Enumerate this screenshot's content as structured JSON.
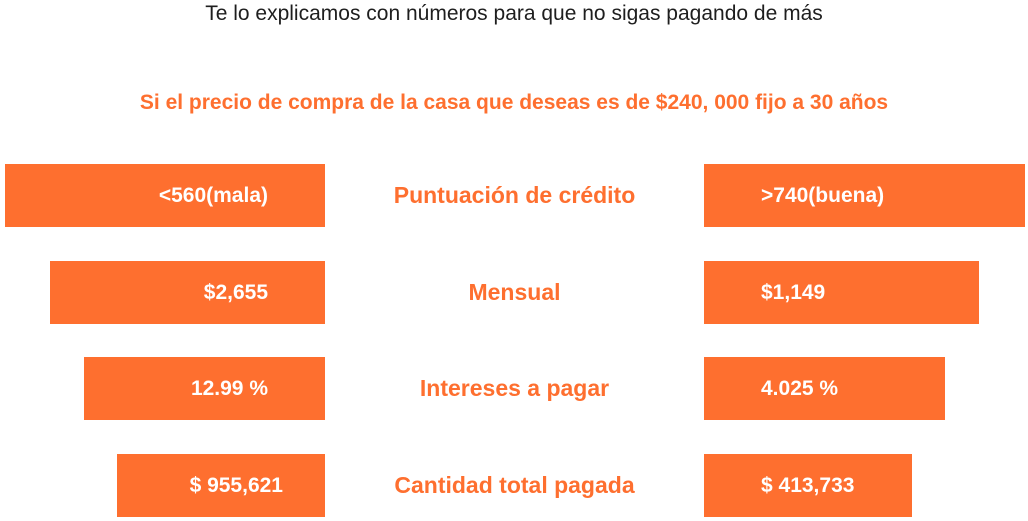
{
  "subtitle": "Te lo explicamos con números para que no sigas pagando de más",
  "headline": "Si el precio de compra de la casa que deseas es de $240, 000 fijo a 30 años",
  "colors": {
    "accent": "#fe6f2f",
    "text": "#1e1e1e",
    "background": "#ffffff"
  },
  "rows": [
    {
      "label": "Puntuación de crédito",
      "left": "<560(mala)",
      "right": ">740(buena)"
    },
    {
      "label": "Mensual",
      "left": "$2,655",
      "right": "$1,149"
    },
    {
      "label": "Intereses a pagar",
      "left": "12.99 %",
      "right": "4.025 %"
    },
    {
      "label": "Cantidad total pagada",
      "left": "$ 955,621",
      "right": "$ 413,733"
    }
  ]
}
